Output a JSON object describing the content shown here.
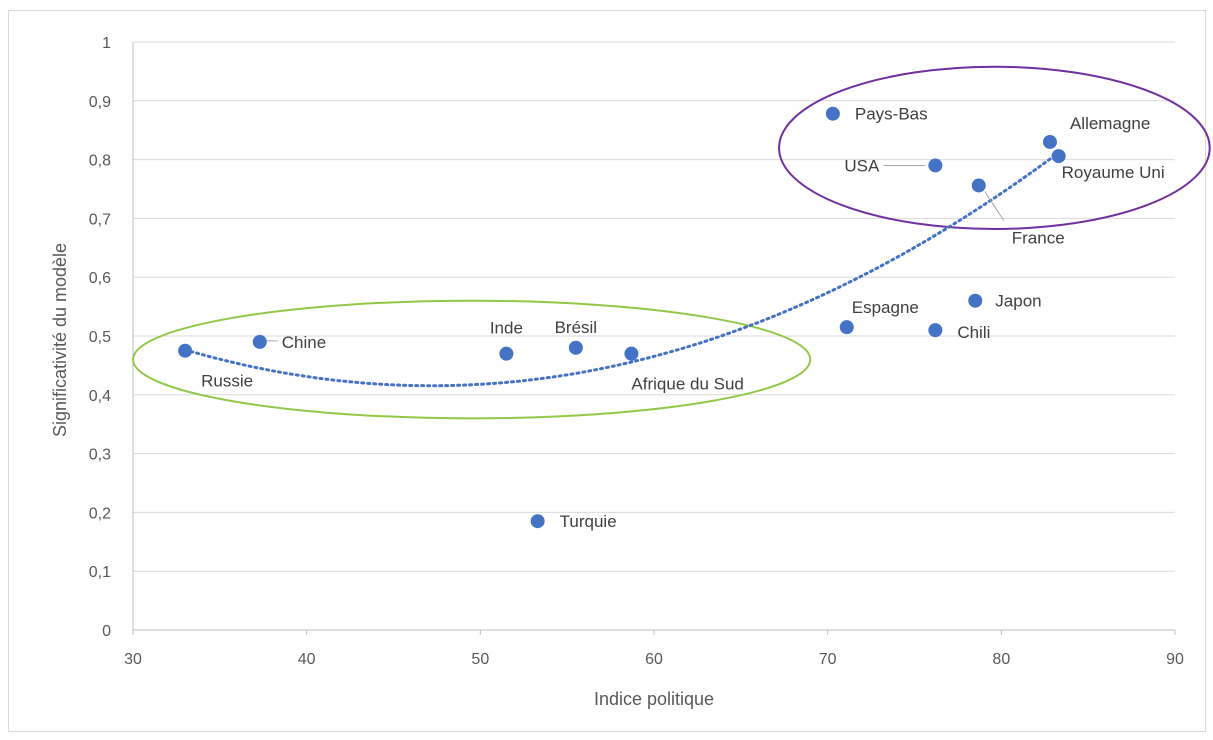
{
  "chart_data": {
    "type": "scatter",
    "xlabel": "Indice politique",
    "ylabel": "Significativité du modèle",
    "xlim": [
      30,
      90
    ],
    "ylim": [
      0,
      1
    ],
    "x_ticks": [
      "30",
      "40",
      "50",
      "60",
      "70",
      "80",
      "90"
    ],
    "y_ticks": [
      "0",
      "0,1",
      "0,2",
      "0,3",
      "0,4",
      "0,5",
      "0,6",
      "0,7",
      "0,8",
      "0,9",
      "1"
    ],
    "grid": {
      "horizontal": true,
      "vertical": false
    },
    "points": [
      {
        "label": "Russie",
        "x": 33.0,
        "y": 0.475
      },
      {
        "label": "Chine",
        "x": 37.3,
        "y": 0.49
      },
      {
        "label": "Inde",
        "x": 51.5,
        "y": 0.47
      },
      {
        "label": "Brésil",
        "x": 55.5,
        "y": 0.48
      },
      {
        "label": "Afrique du Sud",
        "x": 58.7,
        "y": 0.47
      },
      {
        "label": "Turquie",
        "x": 53.3,
        "y": 0.185
      },
      {
        "label": "Pays-Bas",
        "x": 70.3,
        "y": 0.878
      },
      {
        "label": "Espagne",
        "x": 71.1,
        "y": 0.515
      },
      {
        "label": "USA",
        "x": 76.2,
        "y": 0.79
      },
      {
        "label": "Chili",
        "x": 76.2,
        "y": 0.51
      },
      {
        "label": "Japon",
        "x": 78.5,
        "y": 0.56
      },
      {
        "label": "France",
        "x": 78.7,
        "y": 0.756
      },
      {
        "label": "Allemagne",
        "x": 82.8,
        "y": 0.83
      },
      {
        "label": "Royaume Uni",
        "x": 83.3,
        "y": 0.806
      }
    ],
    "trendline": {
      "type": "polynomial",
      "style": "dotted",
      "from_x": 33.0,
      "to_x": 83.3
    },
    "annotations": [
      {
        "type": "ellipse",
        "group": [
          "Russie",
          "Chine",
          "Inde",
          "Brésil",
          "Afrique du Sud"
        ],
        "cx": 49.5,
        "cy": 0.46,
        "rx": 19.5,
        "ry": 0.1
      },
      {
        "type": "ellipse",
        "group": [
          "Pays-Bas",
          "USA",
          "France",
          "Allemagne",
          "Royaume Uni"
        ],
        "cx": 79.6,
        "cy": 0.82,
        "rx": 12.4,
        "ry": 0.138
      }
    ],
    "colors": {
      "points": "#4472c4",
      "trendline": "#4472c4",
      "ellipse_low": "#92c847",
      "ellipse_high": "#7030a0",
      "grid": "#d9d9d9",
      "text": "#595959"
    }
  }
}
